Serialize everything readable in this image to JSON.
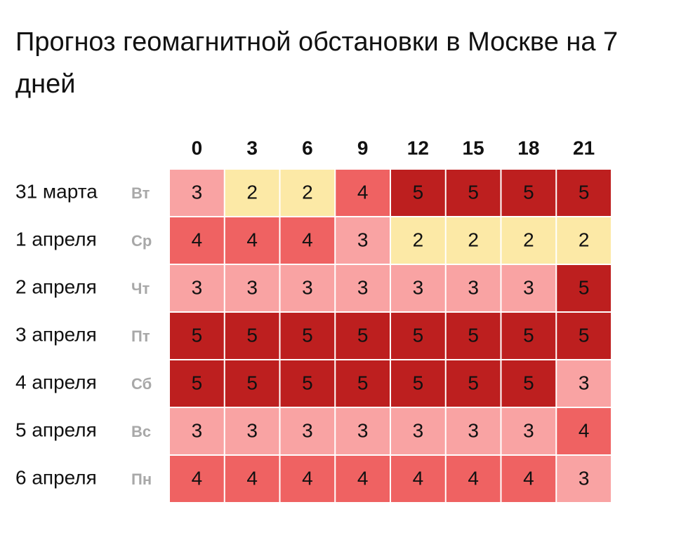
{
  "chart_data": {
    "type": "heatmap",
    "title": "Прогноз геомагнитной обстановки в Москве на 7 дней",
    "x": [
      0,
      3,
      6,
      9,
      12,
      15,
      18,
      21
    ],
    "colors": {
      "2": "#fce9a6",
      "3": "#f9a3a3",
      "4": "#ef6262",
      "5": "#bd1f1f"
    },
    "series": [
      {
        "name": "31 марта",
        "weekday": "Вт",
        "values": [
          3,
          2,
          2,
          4,
          5,
          5,
          5,
          5
        ]
      },
      {
        "name": "1 апреля",
        "weekday": "Ср",
        "values": [
          4,
          4,
          4,
          3,
          2,
          2,
          2,
          2
        ]
      },
      {
        "name": "2 апреля",
        "weekday": "Чт",
        "values": [
          3,
          3,
          3,
          3,
          3,
          3,
          3,
          5
        ]
      },
      {
        "name": "3 апреля",
        "weekday": "Пт",
        "values": [
          5,
          5,
          5,
          5,
          5,
          5,
          5,
          5
        ]
      },
      {
        "name": "4 апреля",
        "weekday": "Сб",
        "values": [
          5,
          5,
          5,
          5,
          5,
          5,
          5,
          3
        ]
      },
      {
        "name": "5 апреля",
        "weekday": "Вс",
        "values": [
          3,
          3,
          3,
          3,
          3,
          3,
          3,
          4
        ]
      },
      {
        "name": "6 апреля",
        "weekday": "Пн",
        "values": [
          4,
          4,
          4,
          4,
          4,
          4,
          4,
          3
        ]
      }
    ]
  }
}
